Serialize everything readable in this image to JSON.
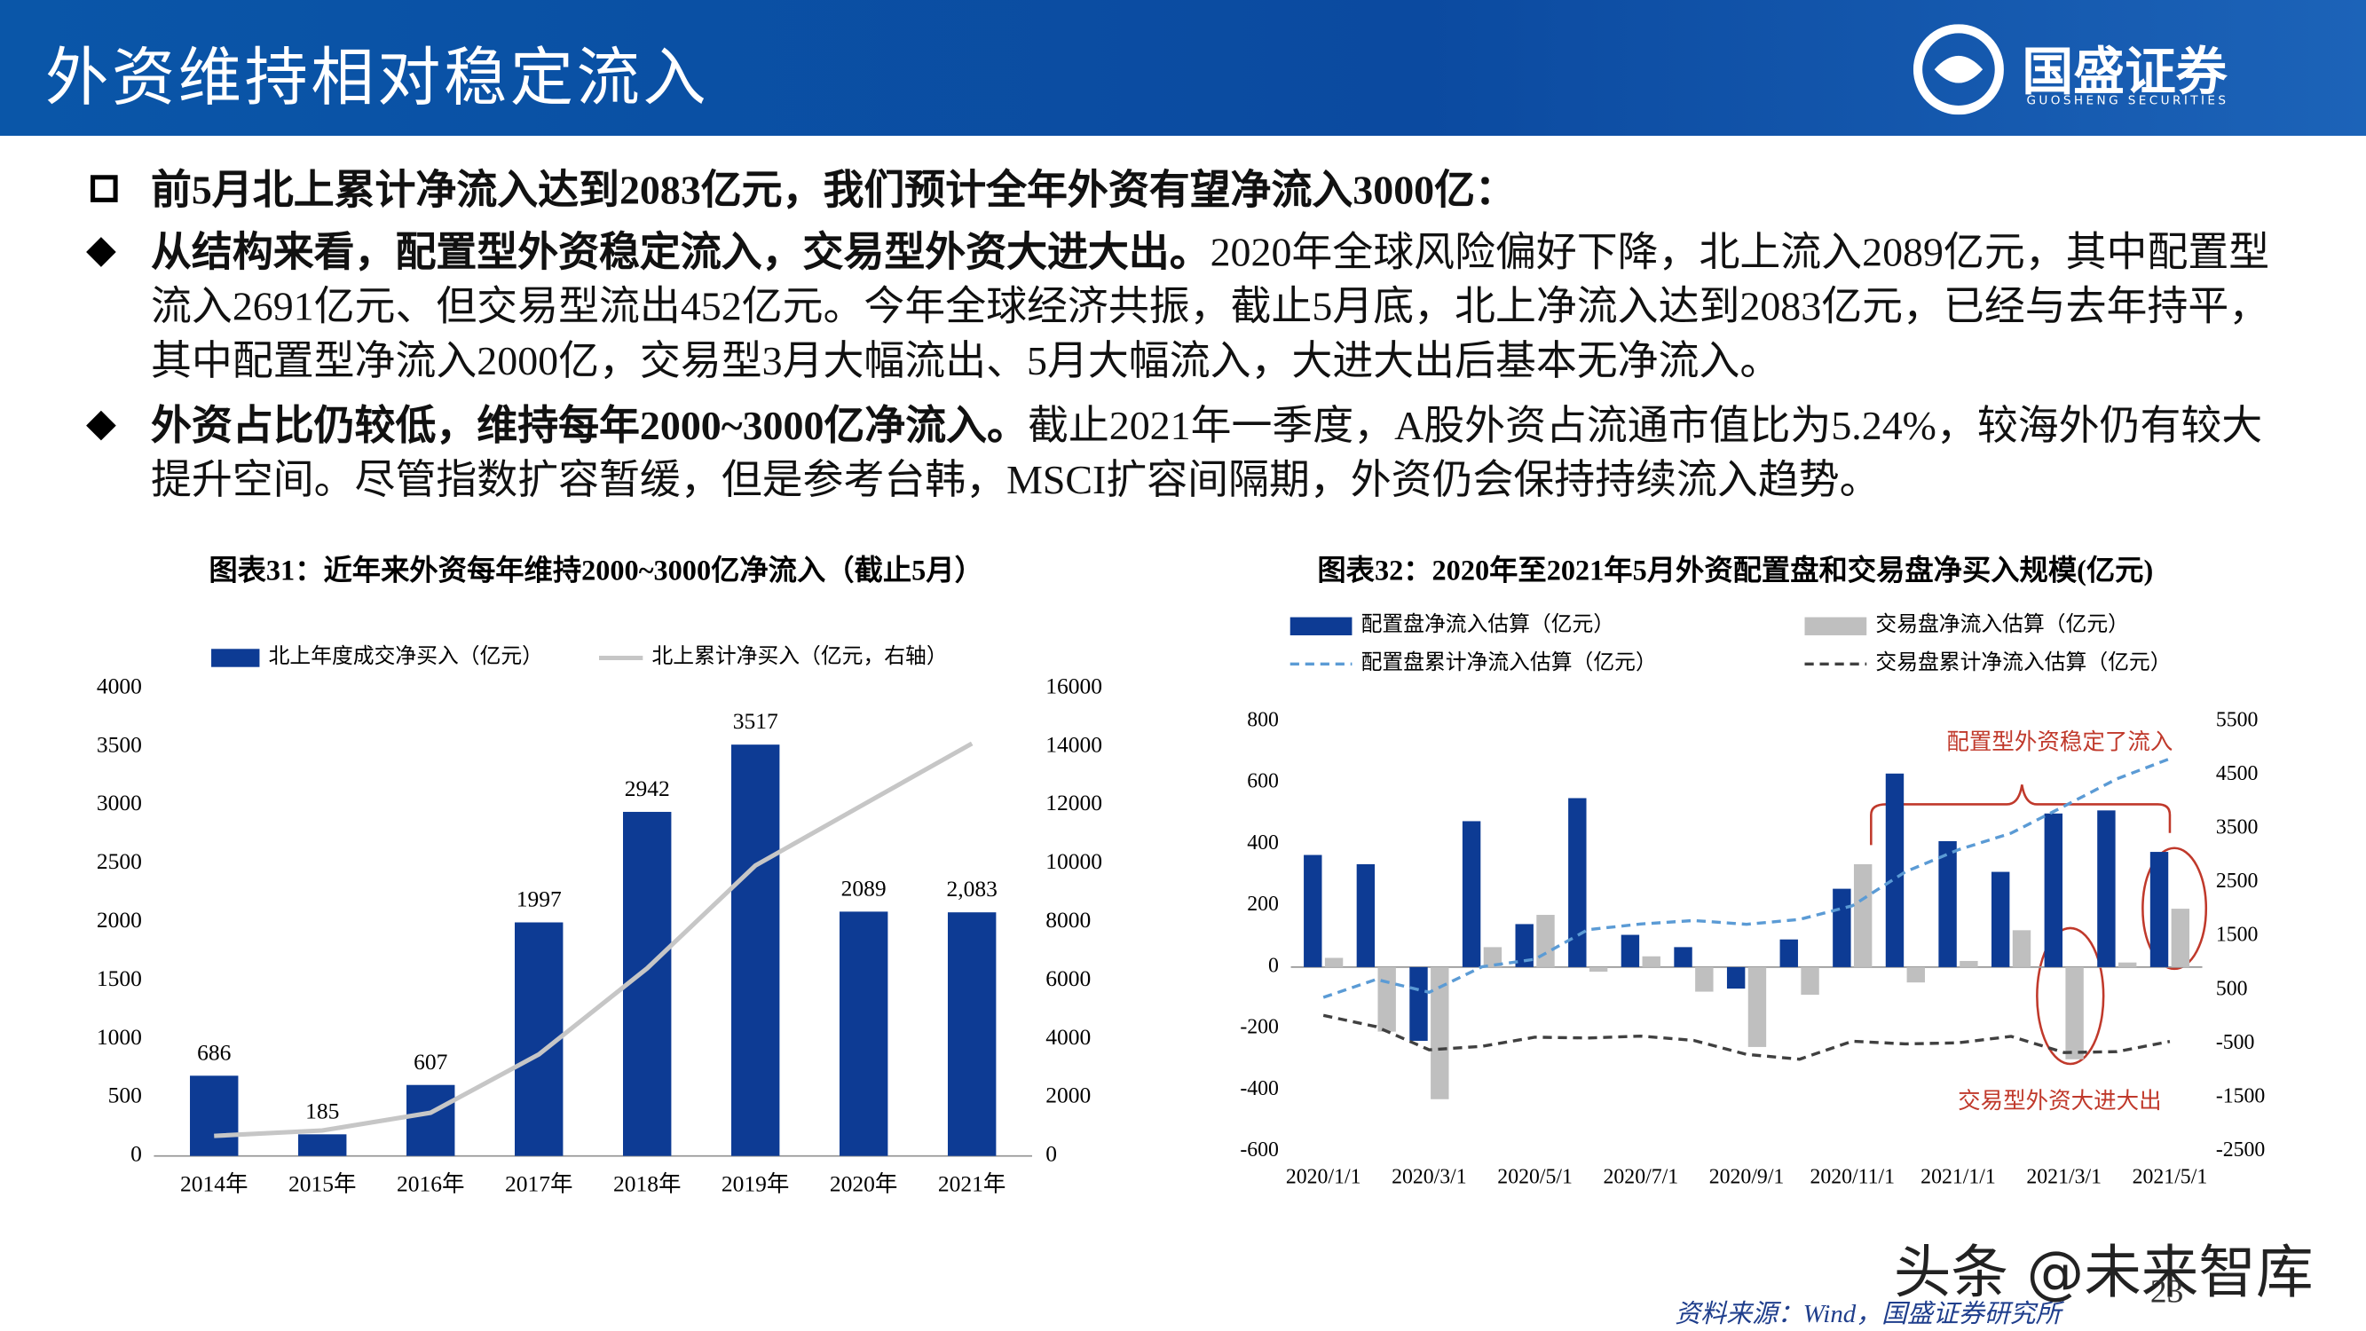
{
  "header": {
    "title": "外资维持相对稳定流入",
    "logo": "国盛证券",
    "logo_en": "GUOSHENG SECURITIES"
  },
  "bullets": [
    {
      "lead": "前5月北上累计净流入达到2083亿元，我们预计全年外资有望净流入3000亿：",
      "text": ""
    },
    {
      "lead": "从结构来看，配置型外资稳定流入，交易型外资大进大出。",
      "text": "2020年全球风险偏好下降，北上流入2089亿元，其中配置型流入2691亿元、但交易型流出452亿元。今年全球经济共振，截止5月底，北上净流入达到2083亿元，已经与去年持平，其中配置型净流入2000亿，交易型3月大幅流出、5月大幅流入，大进大出后基本无净流入。"
    },
    {
      "lead": "外资占比仍较低，维持每年2000~3000亿净流入。",
      "text": "截止2021年一季度，A股外资占流通市值比为5.24%，较海外仍有较大提升空间。尽管指数扩容暂缓，但是参考台韩，MSCI扩容间隔期，外资仍会保持持续流入趋势。"
    }
  ],
  "chart_data": [
    {
      "type": "bar",
      "title": "图表31：近年来外资每年维持2000~3000亿净流入（截止5月）",
      "categories": [
        "2014年",
        "2015年",
        "2016年",
        "2017年",
        "2018年",
        "2019年",
        "2020年",
        "2021年"
      ],
      "series": [
        {
          "name": "北上年度成交净买入（亿元）",
          "type": "bar",
          "color": "#0d3b94",
          "values": [
            686,
            185,
            607,
            1997,
            2942,
            3517,
            2089,
            2083
          ],
          "value_labels": [
            "686",
            "185",
            "607",
            "1997",
            "2942",
            "3517",
            "2089",
            "2,083"
          ]
        },
        {
          "name": "北上累计净买入（亿元，右轴）",
          "type": "line",
          "axis": "y2",
          "color": "#c6c6c6",
          "values": [
            686,
            871,
            1478,
            3475,
            6417,
            9934,
            12023,
            14106
          ]
        }
      ],
      "ylim": [
        0,
        4000
      ],
      "yticks": [
        0,
        500,
        1000,
        1500,
        2000,
        2500,
        3000,
        3500,
        4000
      ],
      "y2lim": [
        0,
        16000
      ],
      "y2ticks": [
        0,
        2000,
        4000,
        6000,
        8000,
        10000,
        12000,
        14000,
        16000
      ]
    },
    {
      "type": "bar",
      "title": "图表32：2020年至2021年5月外资配置盘和交易盘净买入规模(亿元)",
      "categories": [
        "2020/1/1",
        null,
        "2020/3/1",
        null,
        "2020/5/1",
        null,
        "2020/7/1",
        null,
        "2020/9/1",
        null,
        "2020/11/1",
        null,
        "2021/1/1",
        null,
        "2021/3/1",
        null,
        "2021/5/1"
      ],
      "series": [
        {
          "name": "配置盘净流入估算（亿元）",
          "type": "bar",
          "color": "#0d3b94",
          "values": [
            365,
            335,
            -240,
            475,
            140,
            550,
            105,
            65,
            -70,
            90,
            255,
            630,
            410,
            310,
            500,
            510,
            375
          ]
        },
        {
          "name": "交易盘净流入估算（亿元）",
          "type": "bar",
          "color": "#bfbfbf",
          "values": [
            30,
            -210,
            -430,
            65,
            170,
            -15,
            35,
            -80,
            -260,
            -90,
            335,
            -50,
            20,
            120,
            -300,
            15,
            190
          ]
        },
        {
          "name": "配置盘累计净流入估算（亿元）",
          "type": "line",
          "axis": "y2",
          "dashed": true,
          "color": "#5b9bd5",
          "values": [
            365,
            700,
            460,
            935,
            1075,
            1625,
            1730,
            1795,
            1725,
            1815,
            2070,
            2700,
            3110,
            3420,
            3920,
            4430,
            4805
          ]
        },
        {
          "name": "交易盘累计净流入估算（亿元）",
          "type": "line",
          "axis": "y2",
          "dashed": true,
          "color": "#404040",
          "values": [
            30,
            -180,
            -610,
            -545,
            -375,
            -390,
            -355,
            -435,
            -695,
            -785,
            -450,
            -500,
            -480,
            -360,
            -660,
            -645,
            -455
          ]
        }
      ],
      "ylim": [
        -600,
        800
      ],
      "yticks": [
        -600,
        -400,
        -200,
        0,
        200,
        400,
        600,
        800
      ],
      "y2lim": [
        -2500,
        5500
      ],
      "y2ticks": [
        -2500,
        -1500,
        -500,
        500,
        1500,
        2500,
        3500,
        4500,
        5500
      ],
      "annotations": [
        "配置型外资稳定了流入",
        "交易型外资大进大出"
      ]
    }
  ],
  "source": "资料来源：Wind，国盛证券研究所",
  "page_number": "23",
  "watermark": "头条 @未来智库"
}
